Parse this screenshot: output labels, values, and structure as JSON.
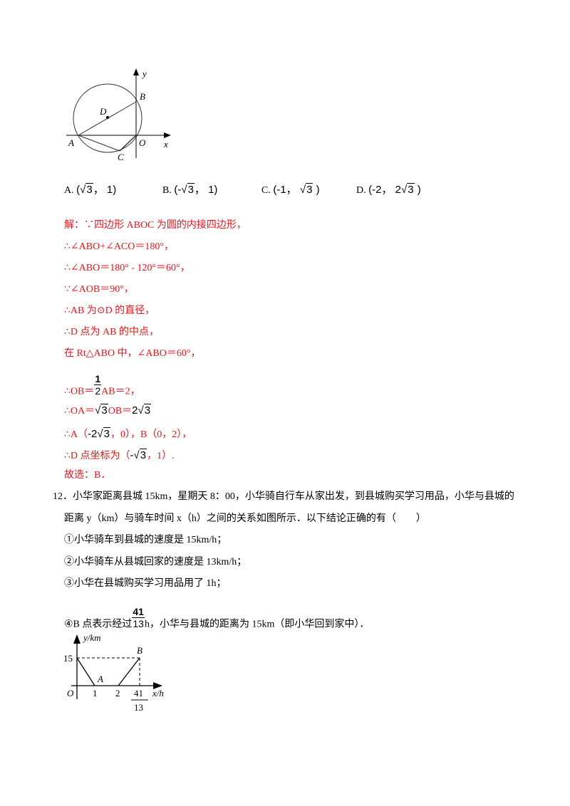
{
  "figure1": {
    "labels": {
      "y": "y",
      "x": "x",
      "A": "A",
      "B": "B",
      "C": "C",
      "D": "D",
      "O": "O"
    }
  },
  "options": [
    {
      "letter": "A.",
      "pre": "(",
      "radical": "3",
      "post": "， 1)"
    },
    {
      "letter": "B.",
      "pre": "(-",
      "radical": "3",
      "post": "， 1)"
    },
    {
      "letter": "C.",
      "pre": "(-1， ",
      "radical": "3",
      "post": " )"
    },
    {
      "letter": "D.",
      "pre": "(-2， 2",
      "radical": "3",
      "post": " )"
    }
  ],
  "solution": {
    "l1": "解：∵四边形 ABOC 为圆的内接四边形，",
    "l2": "∴∠ABO+∠ACO＝180°，",
    "l3": "∴∠ABO＝180° - 120°＝60°，",
    "l4": "∵∠AOB＝90°，",
    "l5": "∴AB 为⊙D 的直径，",
    "l6": "∴D 点为 AB 的中点，",
    "l7": "在 Rt△ABO 中，∠ABO＝60°，",
    "l8": {
      "a": "∴OB＝",
      "num": "1",
      "den": "2",
      "b": "AB＝2，"
    },
    "l9": {
      "a": "∴OA＝",
      "r1": "3",
      "b": "OB＝",
      "c": "2",
      "r2": "3"
    },
    "l10": {
      "a": "∴A（",
      "m1": "-2",
      "r": "3",
      "b": "，0），B（0，2），"
    },
    "l11": {
      "a": "∴D 点坐标为（",
      "m1": "-",
      "r": "3",
      "b": "，1）."
    },
    "l12": "故选：B．"
  },
  "question12": {
    "l1": "12．小华家距离县城 15km，星期天 8：00，小华骑自行车从家出发，到县城购买学习用品，小华与县城的",
    "l2": "距离 y（km）与骑车时间 x（h）之间的关系如图所示．以下结论正确的有（　　）",
    "s1": "①小华骑车到县城的速度是 15km/h；",
    "s2": "②小华骑车从县城回家的速度是 13km/h；",
    "s3": "③小华在县城购买学习用品用了 1h；",
    "s4": {
      "a": "④B 点表示经过",
      "num": "41",
      "den": "13",
      "b": "h，小华与县城的距离为 15km（即小华回到家中）．"
    }
  },
  "chart_data": {
    "type": "line",
    "ylabel": "y/km",
    "xlabel": "x/h",
    "points": [
      {
        "x": 0,
        "y": 15
      },
      {
        "x": 1,
        "y": 0,
        "label": "A"
      },
      {
        "x": 2,
        "y": 0
      },
      {
        "x": "41/13",
        "y": 15,
        "label": "B"
      }
    ],
    "xticks": [
      "O",
      "1",
      "2",
      "41/13"
    ],
    "yticks": [
      "15"
    ]
  }
}
